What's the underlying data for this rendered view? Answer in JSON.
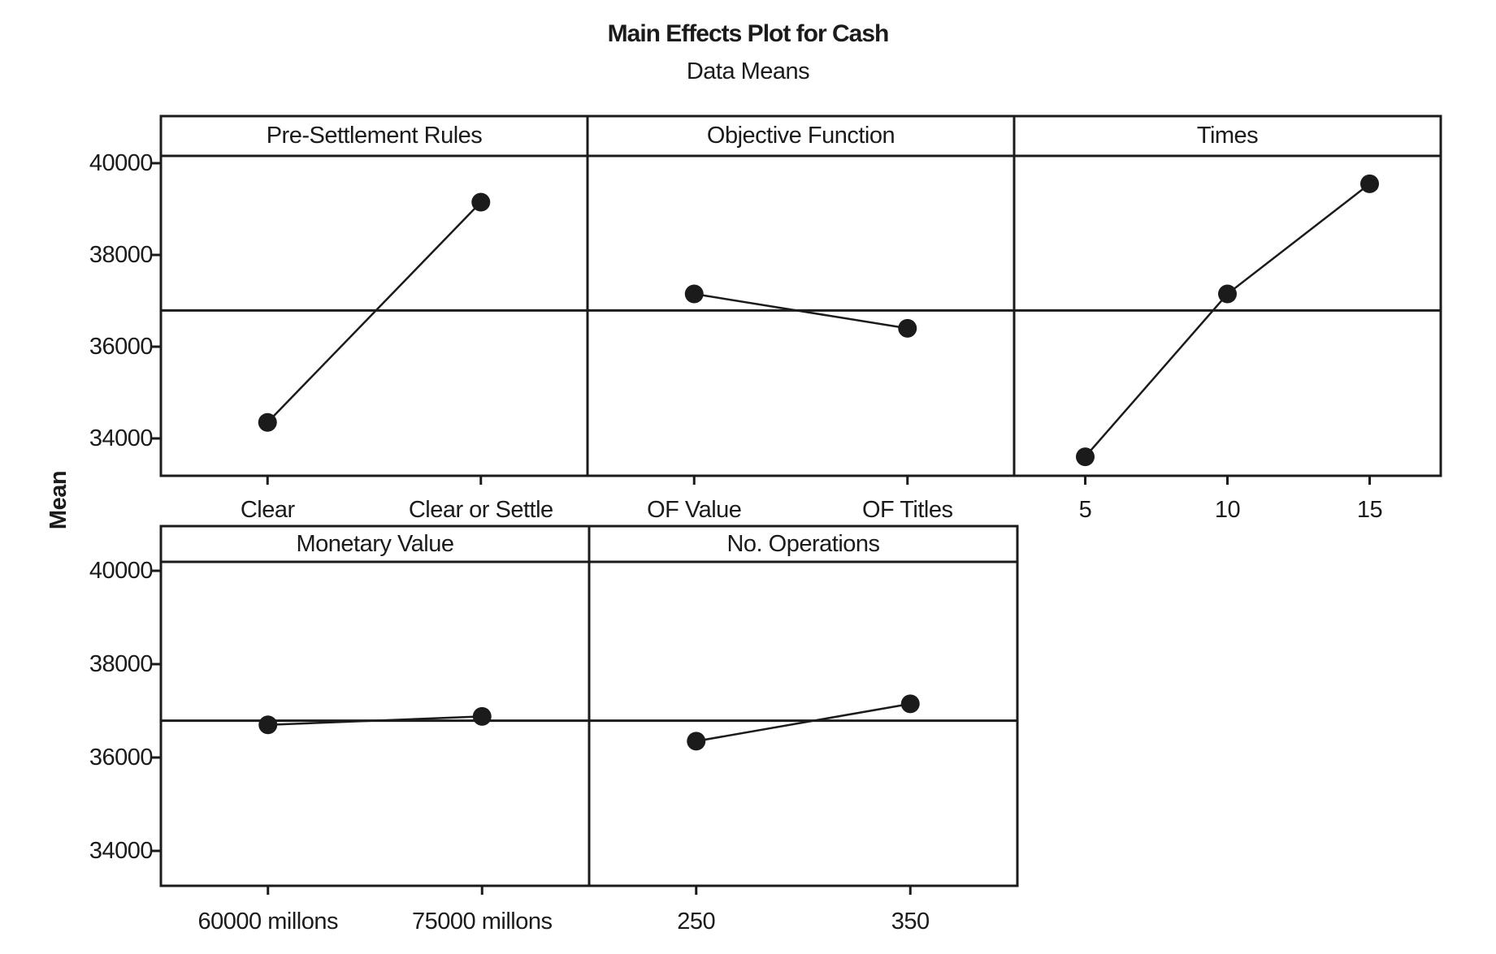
{
  "chart_data": {
    "type": "line",
    "title": "Main Effects Plot for Cash",
    "subtitle": "Data Means",
    "ylabel": "Mean",
    "yticks": [
      "40000",
      "38000",
      "36000",
      "34000"
    ],
    "ytick_values": [
      40000,
      38000,
      36000,
      34000
    ],
    "ylim": [
      33250,
      40250
    ],
    "grid": false,
    "legend": "none",
    "reference_mean": 36790,
    "marker_color": "#1b1b1b",
    "line_color": "#1b1b1b",
    "panels": [
      {
        "factor": "Pre-Settlement Rules",
        "row": 0,
        "categories": [
          "Clear",
          "Clear or Settle"
        ],
        "values": [
          34350,
          39150
        ]
      },
      {
        "factor": "Objective Function",
        "row": 0,
        "categories": [
          "OF Value",
          "OF Titles"
        ],
        "values": [
          37150,
          36400
        ]
      },
      {
        "factor": "Times",
        "row": 0,
        "categories": [
          "5",
          "10",
          "15"
        ],
        "values": [
          33600,
          37150,
          39550
        ]
      },
      {
        "factor": "Monetary Value",
        "row": 1,
        "categories": [
          "60000 millons",
          "75000 millons"
        ],
        "values": [
          36700,
          36880
        ]
      },
      {
        "factor": "No. Operations",
        "row": 1,
        "categories": [
          "250",
          "350"
        ],
        "values": [
          36350,
          37150
        ]
      }
    ]
  }
}
